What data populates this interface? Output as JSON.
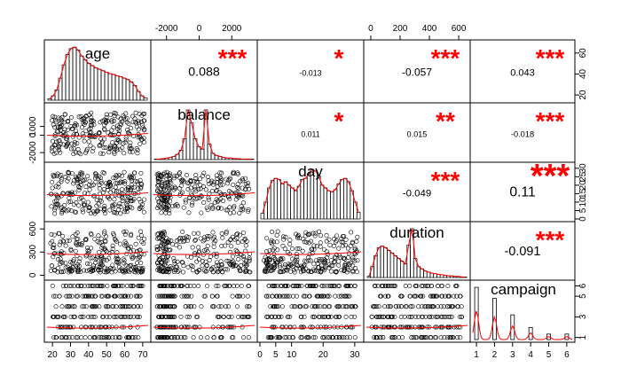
{
  "chart_data": {
    "type": "scatter",
    "variables": [
      "age",
      "balance",
      "day",
      "duration",
      "campaign"
    ],
    "correlations": [
      {
        "row": 0,
        "col": 1,
        "value": "0.088",
        "stars": "***"
      },
      {
        "row": 0,
        "col": 2,
        "value": "-0.013",
        "stars": "*"
      },
      {
        "row": 0,
        "col": 3,
        "value": "-0.057",
        "stars": "***"
      },
      {
        "row": 0,
        "col": 4,
        "value": "0.043",
        "stars": "***"
      },
      {
        "row": 1,
        "col": 2,
        "value": "0.011",
        "stars": "*"
      },
      {
        "row": 1,
        "col": 3,
        "value": "0.015",
        "stars": "**"
      },
      {
        "row": 1,
        "col": 4,
        "value": "-0.018",
        "stars": "***"
      },
      {
        "row": 2,
        "col": 3,
        "value": "-0.049",
        "stars": "***"
      },
      {
        "row": 2,
        "col": 4,
        "value": "0.11",
        "stars": "***"
      },
      {
        "row": 3,
        "col": 4,
        "value": "-0.091",
        "stars": "***"
      }
    ],
    "axes": {
      "age": {
        "range": [
          17,
          73
        ],
        "ticks": [
          20,
          30,
          40,
          50,
          60,
          70
        ]
      },
      "balance": {
        "range": [
          -2800,
          3400
        ],
        "ticks": [
          -2000,
          0,
          2000
        ],
        "left_ticks": [
          -2000,
          0,
          1000
        ]
      },
      "day": {
        "range": [
          0,
          32
        ],
        "ticks": [
          0,
          5,
          10,
          20,
          30
        ],
        "right_ticks": [
          0,
          5,
          10,
          15,
          20,
          25,
          30
        ]
      },
      "duration": {
        "range": [
          -30,
          660
        ],
        "ticks": [
          0,
          200,
          400,
          600
        ],
        "left_ticks": [
          0,
          300,
          600
        ]
      },
      "campaign": {
        "range": [
          0.8,
          6.3
        ],
        "ticks": [
          1,
          2,
          3,
          4,
          5,
          6
        ],
        "right_ticks": [
          1,
          3,
          5,
          6
        ]
      },
      "age_density": {
        "right_ticks": [
          20,
          40,
          60
        ]
      }
    },
    "histograms": {
      "age": [
        2,
        6,
        14,
        30,
        48,
        62,
        70,
        72,
        68,
        60,
        55,
        50,
        47,
        44,
        42,
        40,
        38,
        36,
        35,
        33,
        32,
        30,
        28,
        25,
        20,
        12,
        6,
        3
      ],
      "balance": [
        1,
        1,
        2,
        3,
        4,
        6,
        10,
        18,
        40,
        95,
        70,
        40,
        25,
        20,
        95,
        30,
        12,
        8,
        6,
        4,
        3,
        3,
        2,
        2,
        1,
        1,
        1,
        1
      ],
      "day": [
        10,
        30,
        55,
        68,
        72,
        70,
        62,
        66,
        60,
        55,
        50,
        58,
        70,
        72,
        80,
        88,
        85,
        76,
        60,
        55,
        50,
        48,
        52,
        62,
        70,
        72,
        66,
        50,
        30,
        12
      ],
      "duration": [
        2,
        20,
        40,
        55,
        58,
        55,
        50,
        45,
        40,
        35,
        30,
        25,
        60,
        90,
        35,
        20,
        16,
        12,
        10,
        8,
        7,
        6,
        5,
        4,
        3,
        3,
        2,
        2,
        1,
        1
      ],
      "campaign": [
        {
          "x": 1,
          "h": 95
        },
        {
          "x": 2,
          "h": 75
        },
        {
          "x": 3,
          "h": 45
        },
        {
          "x": 4,
          "h": 22
        },
        {
          "x": 5,
          "h": 10
        },
        {
          "x": 6,
          "h": 10
        }
      ]
    }
  }
}
